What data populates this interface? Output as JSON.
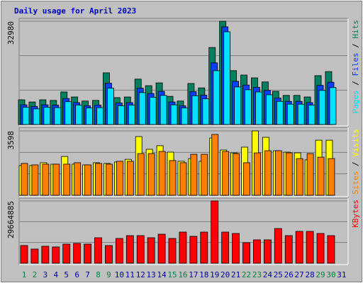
{
  "chart_data": [
    {
      "type": "bar",
      "title": "Daily usage for April 2023",
      "categories": [
        "1",
        "2",
        "3",
        "4",
        "5",
        "6",
        "7",
        "8",
        "9",
        "10",
        "11",
        "12",
        "13",
        "14",
        "15",
        "16",
        "17",
        "18",
        "19",
        "20",
        "21",
        "22",
        "23",
        "24",
        "25",
        "26",
        "27",
        "28",
        "29",
        "30",
        "31"
      ],
      "label_colors": [
        "#008040",
        "#008040",
        "#0000a0",
        "#0000a0",
        "#0000a0",
        "#0000a0",
        "#0000a0",
        "#008040",
        "#008040",
        "#0000a0",
        "#0000a0",
        "#0000a0",
        "#0000a0",
        "#0000a0",
        "#008040",
        "#008040",
        "#0000a0",
        "#0000a0",
        "#0000a0",
        "#0000a0",
        "#0000a0",
        "#008040",
        "#008040",
        "#0000a0",
        "#0000a0",
        "#0000a0",
        "#0000a0",
        "#0000a0",
        "#008040",
        "#008040",
        "#0000a0"
      ],
      "ylim": [
        0,
        32980
      ],
      "yticks": [
        32980
      ],
      "series": [
        {
          "name": "Hits",
          "color": "#008060",
          "values": [
            7900,
            7200,
            7900,
            7700,
            10400,
            8800,
            7500,
            7700,
            16500,
            8600,
            8800,
            14500,
            12400,
            13300,
            9000,
            7500,
            13100,
            11700,
            24600,
            32980,
            17200,
            15800,
            14900,
            13600,
            10600,
            9300,
            9300,
            8800,
            15600,
            16900,
            null
          ]
        },
        {
          "name": "Files",
          "color": "#0040ff",
          "values": [
            6300,
            5800,
            6300,
            6200,
            8300,
            7000,
            6000,
            6200,
            13200,
            6900,
            7000,
            11600,
            9900,
            10600,
            7200,
            6000,
            10500,
            9400,
            19700,
            31200,
            13800,
            12600,
            11900,
            10900,
            8500,
            7400,
            7400,
            7000,
            12500,
            13500,
            null
          ]
        },
        {
          "name": "Pages",
          "color": "#00e0ff",
          "values": [
            5500,
            5000,
            5500,
            5400,
            7300,
            6200,
            5300,
            5400,
            11600,
            6000,
            6200,
            10200,
            8700,
            9300,
            6300,
            5300,
            9200,
            8200,
            17200,
            29600,
            12000,
            11100,
            10400,
            9500,
            7400,
            6500,
            6500,
            6200,
            10900,
            11800,
            null
          ]
        }
      ]
    },
    {
      "type": "bar",
      "ylim": [
        0,
        3598
      ],
      "yticks": [
        3598
      ],
      "series": [
        {
          "name": "Visits",
          "color": "#ffff00",
          "values": [
            1660,
            1660,
            1820,
            1740,
            2170,
            1740,
            1700,
            1820,
            1780,
            1860,
            2010,
            3280,
            2570,
            2770,
            2410,
            1900,
            2050,
            1900,
            3200,
            2530,
            2370,
            2690,
            3598,
            3240,
            2490,
            2410,
            2370,
            1980,
            3080,
            3080,
            null
          ]
        },
        {
          "name": "Sites",
          "color": "#ff8000",
          "values": [
            1780,
            1700,
            1740,
            1740,
            1740,
            1820,
            1700,
            1780,
            1740,
            1900,
            1900,
            2330,
            2330,
            2450,
            1940,
            1820,
            2290,
            2290,
            3400,
            2450,
            2330,
            1820,
            2370,
            2490,
            2490,
            2370,
            2050,
            2330,
            2130,
            2050,
            null
          ]
        }
      ]
    },
    {
      "type": "bar",
      "ylim": [
        0,
        29664885
      ],
      "yticks": [
        29664885
      ],
      "series": [
        {
          "name": "KBytes",
          "color": "#ff0000",
          "values": [
            8427500,
            6742000,
            8090400,
            7753300,
            9101700,
            9438800,
            9101700,
            12135600,
            8427500,
            11798500,
            13146900,
            13146900,
            12135600,
            13821100,
            11798500,
            14832400,
            12809800,
            14832400,
            29664885,
            14832400,
            14158200,
            9775900,
            11124300,
            11124300,
            16517900,
            13146900,
            15169500,
            15169500,
            14158200,
            13146900,
            null
          ]
        }
      ]
    }
  ]
}
